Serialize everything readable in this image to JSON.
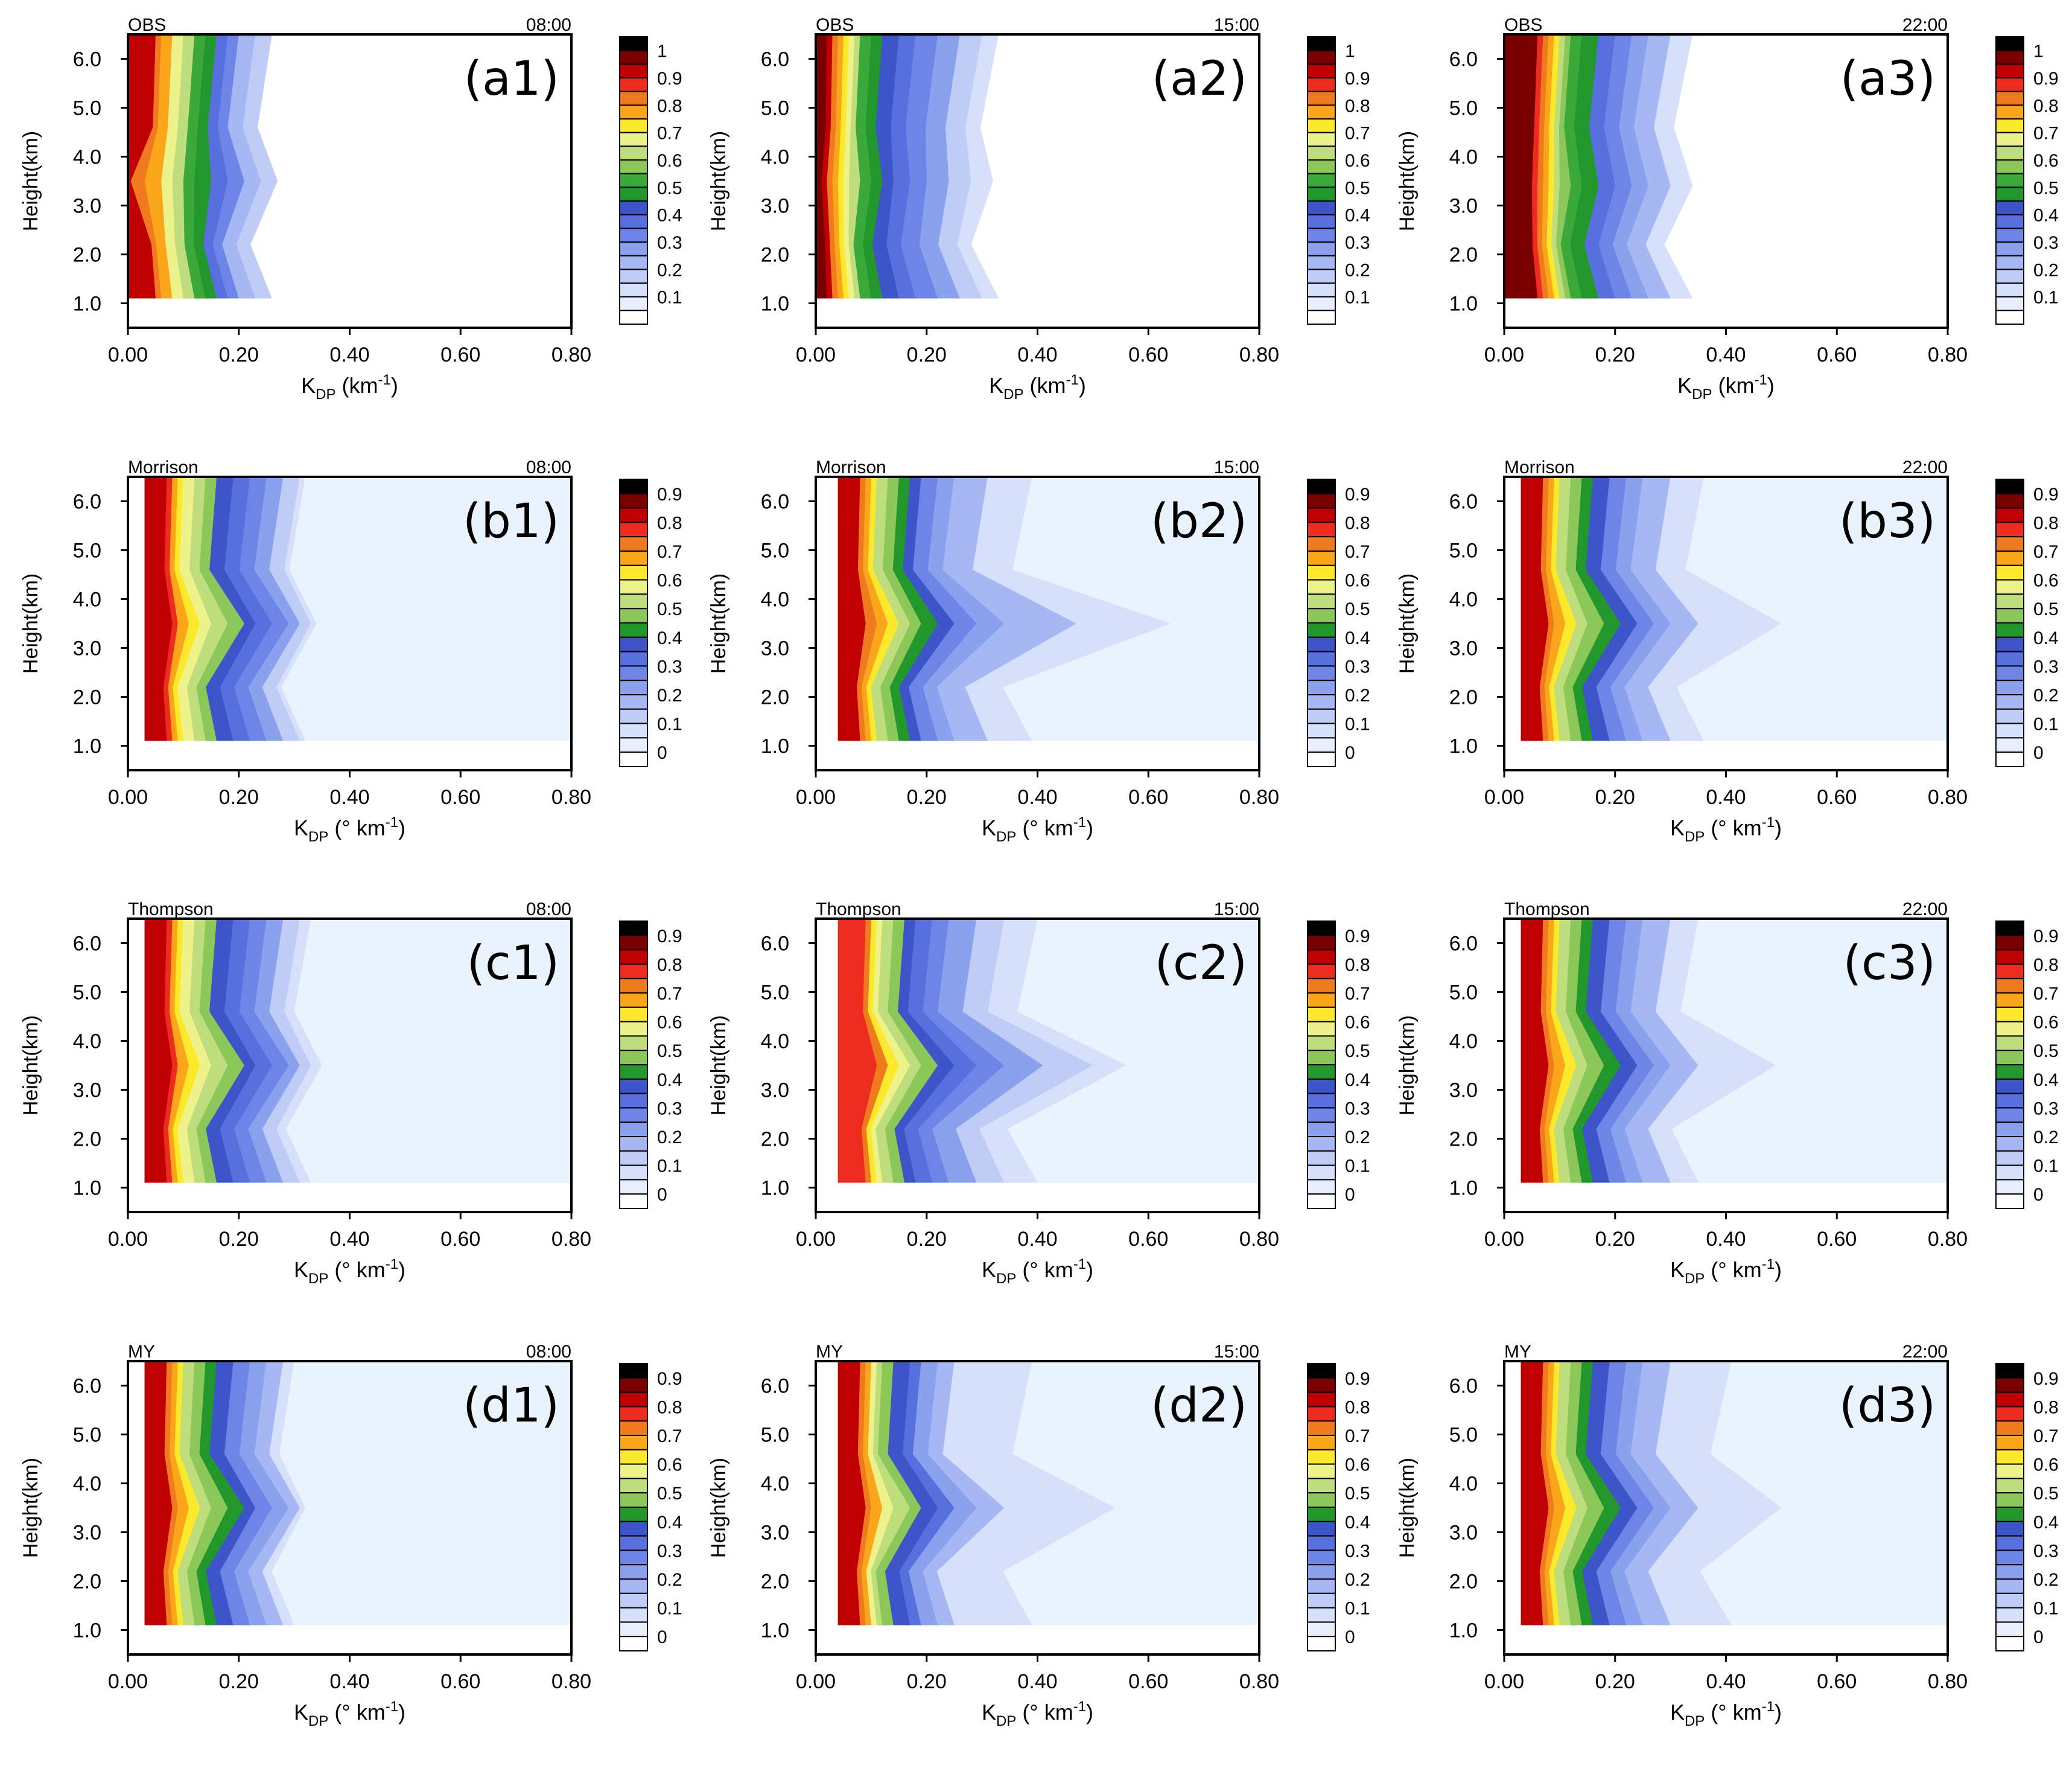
{
  "figure": {
    "xaxis": {
      "ticks": [
        "0.00",
        "0.20",
        "0.40",
        "0.60",
        "0.80"
      ],
      "range": [
        0,
        0.8
      ]
    },
    "yaxis": {
      "label": "Height(km)",
      "ticks": [
        "1.0",
        "2.0",
        "3.0",
        "4.0",
        "5.0",
        "6.0"
      ],
      "range": [
        0.5,
        6.5
      ]
    },
    "xlabel_obs": {
      "base": "K",
      "sub": "DP",
      "unit": " (km",
      "sup": "-1",
      "end": ")"
    },
    "xlabel_model": {
      "base": "K",
      "sub": "DP",
      "unit": " (° km",
      "sup": "-1",
      "end": ")"
    },
    "colorbar_obs": {
      "labels": [
        "1",
        "0.9",
        "0.8",
        "0.7",
        "0.6",
        "0.5",
        "0.4",
        "0.3",
        "0.2",
        "0.1"
      ],
      "colors": [
        "#000000",
        "#7a0000",
        "#c00000",
        "#ee2b1f",
        "#f07a1e",
        "#fba61a",
        "#fde92b",
        "#eef28a",
        "#bede7e",
        "#8cc75a",
        "#3aa93a",
        "#22972b",
        "#3d55c9",
        "#5770de",
        "#6d85e6",
        "#8aa1ee",
        "#a6b8f3",
        "#bfcdf6",
        "#d6e0fa",
        "#e8effc",
        "#ffffff"
      ]
    },
    "colorbar_model": {
      "labels": [
        "0.9",
        "0.8",
        "0.7",
        "0.6",
        "0.5",
        "0.4",
        "0.3",
        "0.2",
        "0.1",
        "0"
      ],
      "colors": [
        "#000000",
        "#7a0000",
        "#c00000",
        "#ee2b1f",
        "#f07a1e",
        "#fba61a",
        "#fde92b",
        "#eef28a",
        "#bede7e",
        "#8cc75a",
        "#22972b",
        "#3d55c9",
        "#5770de",
        "#6d85e6",
        "#8aa1ee",
        "#a6b8f3",
        "#bfcdf6",
        "#d6e0fa",
        "#e8effc",
        "#ffffff"
      ]
    }
  },
  "chart_data": [
    {
      "type": "heatmap",
      "id": "a1",
      "scheme": "OBS",
      "time": "08:00",
      "label": "(a1)",
      "profile": {
        "x0": 0.0,
        "peakHeight": 3.5,
        "maxValue": 0.95,
        "contours": [
          [
            0.005,
            0.05
          ],
          [
            0.03,
            0.06
          ],
          [
            0.06,
            0.08
          ],
          [
            0.08,
            0.1
          ],
          [
            0.1,
            0.12
          ],
          [
            0.12,
            0.14
          ],
          [
            0.15,
            0.16
          ],
          [
            0.18,
            0.18
          ],
          [
            0.21,
            0.2
          ],
          [
            0.24,
            0.23
          ],
          [
            0.27,
            0.26
          ]
        ]
      }
    },
    {
      "type": "heatmap",
      "id": "a2",
      "scheme": "OBS",
      "time": "15:00",
      "label": "(a2)",
      "profile": {
        "x0": 0.0,
        "peakHeight": 3.5,
        "maxValue": 1.0,
        "contours": [
          [
            0.01,
            0.02
          ],
          [
            0.02,
            0.03
          ],
          [
            0.03,
            0.04
          ],
          [
            0.04,
            0.05
          ],
          [
            0.05,
            0.06
          ],
          [
            0.06,
            0.07
          ],
          [
            0.08,
            0.08
          ],
          [
            0.1,
            0.1
          ],
          [
            0.12,
            0.12
          ],
          [
            0.14,
            0.15
          ],
          [
            0.17,
            0.18
          ],
          [
            0.2,
            0.22
          ],
          [
            0.24,
            0.26
          ],
          [
            0.28,
            0.3
          ],
          [
            0.32,
            0.33
          ]
        ]
      }
    },
    {
      "type": "heatmap",
      "id": "a3",
      "scheme": "OBS",
      "time": "22:00",
      "label": "(a3)",
      "profile": {
        "x0": 0.0,
        "peakHeight": 3.4,
        "maxValue": 1.0,
        "contours": [
          [
            0.05,
            0.06
          ],
          [
            0.06,
            0.07
          ],
          [
            0.07,
            0.08
          ],
          [
            0.08,
            0.09
          ],
          [
            0.09,
            0.1
          ],
          [
            0.1,
            0.11
          ],
          [
            0.12,
            0.12
          ],
          [
            0.14,
            0.14
          ],
          [
            0.17,
            0.17
          ],
          [
            0.2,
            0.2
          ],
          [
            0.23,
            0.23
          ],
          [
            0.26,
            0.26
          ],
          [
            0.3,
            0.3
          ],
          [
            0.34,
            0.34
          ]
        ]
      }
    },
    {
      "type": "heatmap",
      "id": "b1",
      "scheme": "Morrison",
      "time": "08:00",
      "label": "(b1)",
      "profile": {
        "x0": 0.03,
        "peakHeight": 3.5,
        "maxValue": 0.9,
        "contours": [
          [
            0.05,
            0.04
          ],
          [
            0.06,
            0.05
          ],
          [
            0.08,
            0.06
          ],
          [
            0.1,
            0.07
          ],
          [
            0.12,
            0.09
          ],
          [
            0.15,
            0.11
          ],
          [
            0.18,
            0.13
          ],
          [
            0.2,
            0.16
          ],
          [
            0.23,
            0.19
          ],
          [
            0.26,
            0.22
          ],
          [
            0.28,
            0.25
          ],
          [
            0.3,
            0.28
          ],
          [
            0.31,
            0.29
          ]
        ]
      }
    },
    {
      "type": "heatmap",
      "id": "b2",
      "scheme": "Morrison",
      "time": "15:00",
      "label": "(b2)",
      "profile": {
        "x0": 0.04,
        "peakHeight": 3.5,
        "maxValue": 0.9,
        "contours": [
          [
            0.05,
            0.04
          ],
          [
            0.07,
            0.05
          ],
          [
            0.09,
            0.06
          ],
          [
            0.11,
            0.07
          ],
          [
            0.13,
            0.09
          ],
          [
            0.15,
            0.11
          ],
          [
            0.18,
            0.13
          ],
          [
            0.21,
            0.15
          ],
          [
            0.25,
            0.18
          ],
          [
            0.3,
            0.21
          ],
          [
            0.43,
            0.27
          ],
          [
            0.6,
            0.35
          ]
        ]
      }
    },
    {
      "type": "heatmap",
      "id": "b3",
      "scheme": "Morrison",
      "time": "22:00",
      "label": "(b3)",
      "profile": {
        "x0": 0.03,
        "peakHeight": 3.5,
        "maxValue": 0.9,
        "contours": [
          [
            0.05,
            0.04
          ],
          [
            0.06,
            0.05
          ],
          [
            0.08,
            0.06
          ],
          [
            0.1,
            0.07
          ],
          [
            0.12,
            0.09
          ],
          [
            0.15,
            0.11
          ],
          [
            0.18,
            0.13
          ],
          [
            0.21,
            0.16
          ],
          [
            0.24,
            0.19
          ],
          [
            0.27,
            0.22
          ],
          [
            0.32,
            0.27
          ],
          [
            0.47,
            0.33
          ]
        ]
      }
    },
    {
      "type": "heatmap",
      "id": "c1",
      "scheme": "Thompson",
      "time": "08:00",
      "label": "(c1)",
      "profile": {
        "x0": 0.03,
        "peakHeight": 3.5,
        "maxValue": 0.9,
        "contours": [
          [
            0.05,
            0.04
          ],
          [
            0.06,
            0.05
          ],
          [
            0.08,
            0.06
          ],
          [
            0.1,
            0.07
          ],
          [
            0.12,
            0.09
          ],
          [
            0.15,
            0.11
          ],
          [
            0.18,
            0.13
          ],
          [
            0.2,
            0.16
          ],
          [
            0.23,
            0.19
          ],
          [
            0.26,
            0.22
          ],
          [
            0.28,
            0.25
          ],
          [
            0.3,
            0.28
          ],
          [
            0.32,
            0.3
          ]
        ]
      }
    },
    {
      "type": "heatmap",
      "id": "c2",
      "scheme": "Thompson",
      "time": "15:00",
      "label": "(c2)",
      "profile": {
        "x0": 0.04,
        "peakHeight": 3.5,
        "maxValue": 0.85,
        "contours": [
          [
            0.07,
            0.05
          ],
          [
            0.09,
            0.06
          ],
          [
            0.11,
            0.07
          ],
          [
            0.13,
            0.08
          ],
          [
            0.15,
            0.1
          ],
          [
            0.18,
            0.12
          ],
          [
            0.21,
            0.14
          ],
          [
            0.25,
            0.17
          ],
          [
            0.3,
            0.2
          ],
          [
            0.37,
            0.25
          ],
          [
            0.46,
            0.3
          ],
          [
            0.52,
            0.36
          ]
        ]
      }
    },
    {
      "type": "heatmap",
      "id": "c3",
      "scheme": "Thompson",
      "time": "22:00",
      "label": "(c3)",
      "profile": {
        "x0": 0.03,
        "peakHeight": 3.5,
        "maxValue": 0.9,
        "contours": [
          [
            0.05,
            0.04
          ],
          [
            0.06,
            0.05
          ],
          [
            0.08,
            0.06
          ],
          [
            0.1,
            0.07
          ],
          [
            0.12,
            0.09
          ],
          [
            0.15,
            0.11
          ],
          [
            0.18,
            0.13
          ],
          [
            0.21,
            0.16
          ],
          [
            0.24,
            0.19
          ],
          [
            0.27,
            0.22
          ],
          [
            0.32,
            0.27
          ],
          [
            0.46,
            0.32
          ]
        ]
      }
    },
    {
      "type": "heatmap",
      "id": "d1",
      "scheme": "MY",
      "time": "08:00",
      "label": "(d1)",
      "profile": {
        "x0": 0.03,
        "peakHeight": 3.5,
        "maxValue": 0.9,
        "contours": [
          [
            0.05,
            0.04
          ],
          [
            0.06,
            0.05
          ],
          [
            0.08,
            0.06
          ],
          [
            0.1,
            0.07
          ],
          [
            0.12,
            0.09
          ],
          [
            0.15,
            0.11
          ],
          [
            0.18,
            0.13
          ],
          [
            0.2,
            0.16
          ],
          [
            0.23,
            0.19
          ],
          [
            0.26,
            0.22
          ],
          [
            0.28,
            0.25
          ],
          [
            0.29,
            0.27
          ]
        ]
      }
    },
    {
      "type": "heatmap",
      "id": "d2",
      "scheme": "MY",
      "time": "15:00",
      "label": "(d2)",
      "profile": {
        "x0": 0.04,
        "peakHeight": 3.5,
        "maxValue": 0.9,
        "contours": [
          [
            0.05,
            0.04
          ],
          [
            0.06,
            0.05
          ],
          [
            0.08,
            0.06
          ],
          [
            0.1,
            0.07
          ],
          [
            0.13,
            0.08
          ],
          [
            0.15,
            0.1
          ],
          [
            0.18,
            0.13
          ],
          [
            0.21,
            0.15
          ],
          [
            0.25,
            0.18
          ],
          [
            0.3,
            0.21
          ],
          [
            0.5,
            0.35
          ]
        ]
      }
    },
    {
      "type": "heatmap",
      "id": "d3",
      "scheme": "MY",
      "time": "22:00",
      "label": "(d3)",
      "profile": {
        "x0": 0.03,
        "peakHeight": 3.5,
        "maxValue": 0.9,
        "contours": [
          [
            0.05,
            0.04
          ],
          [
            0.06,
            0.05
          ],
          [
            0.08,
            0.06
          ],
          [
            0.1,
            0.07
          ],
          [
            0.12,
            0.09
          ],
          [
            0.15,
            0.11
          ],
          [
            0.18,
            0.13
          ],
          [
            0.21,
            0.16
          ],
          [
            0.24,
            0.19
          ],
          [
            0.27,
            0.22
          ],
          [
            0.32,
            0.27
          ],
          [
            0.47,
            0.38
          ]
        ]
      }
    }
  ]
}
